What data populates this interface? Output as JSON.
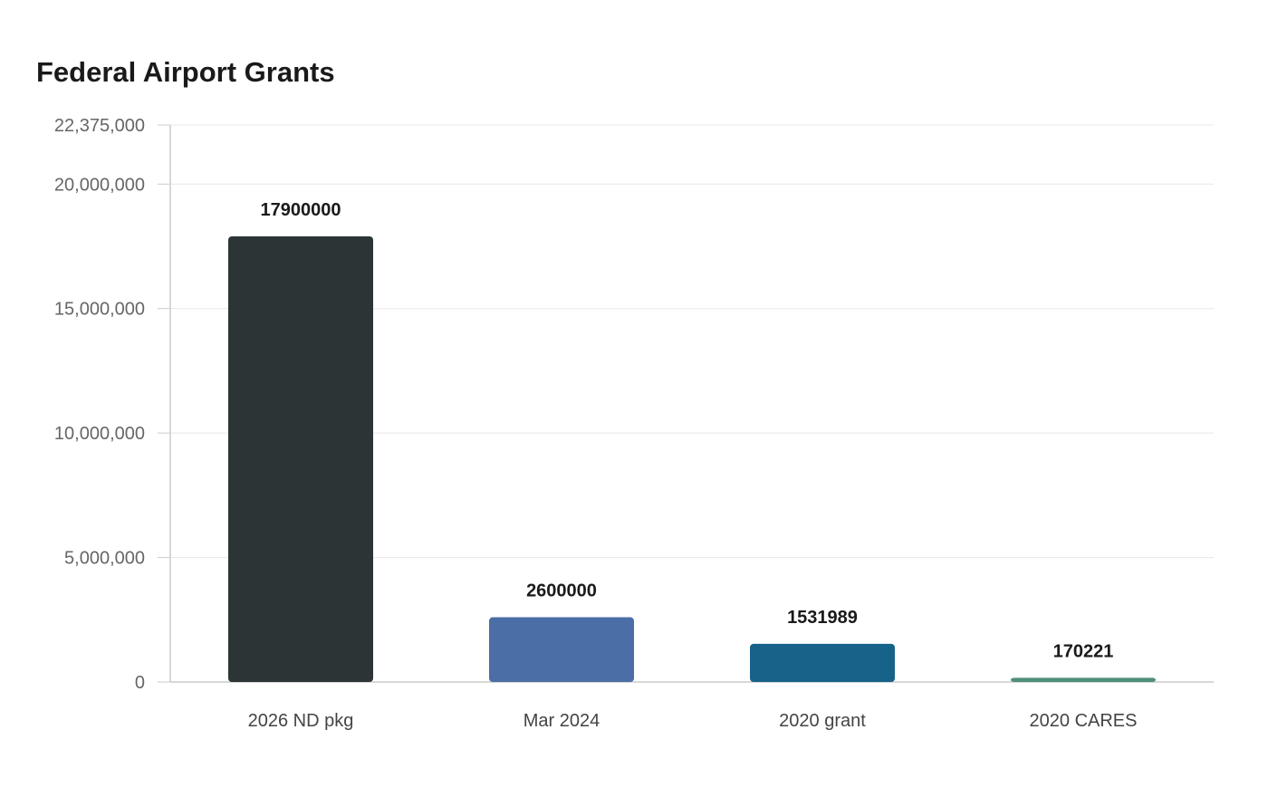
{
  "chart_data": {
    "type": "bar",
    "title": "Federal Airport Grants",
    "xlabel": "",
    "ylabel": "",
    "categories": [
      "2026 ND pkg",
      "Mar 2024",
      "2020 grant",
      "2020 CARES"
    ],
    "values": [
      17900000,
      2600000,
      1531989,
      170221
    ],
    "data_labels": [
      "17900000",
      "2600000",
      "1531989",
      "170221"
    ],
    "colors": [
      "#2d3436",
      "#4a6ea5",
      "#176289",
      "#4e8f78"
    ],
    "ylim": [
      0,
      22375000
    ],
    "yticks": [
      0,
      5000000,
      10000000,
      15000000,
      20000000,
      22375000
    ],
    "ytick_labels": [
      "0",
      "5,000,000",
      "10,000,000",
      "15,000,000",
      "20,000,000",
      "22,375,000"
    ],
    "grid": true,
    "legend": "none"
  }
}
